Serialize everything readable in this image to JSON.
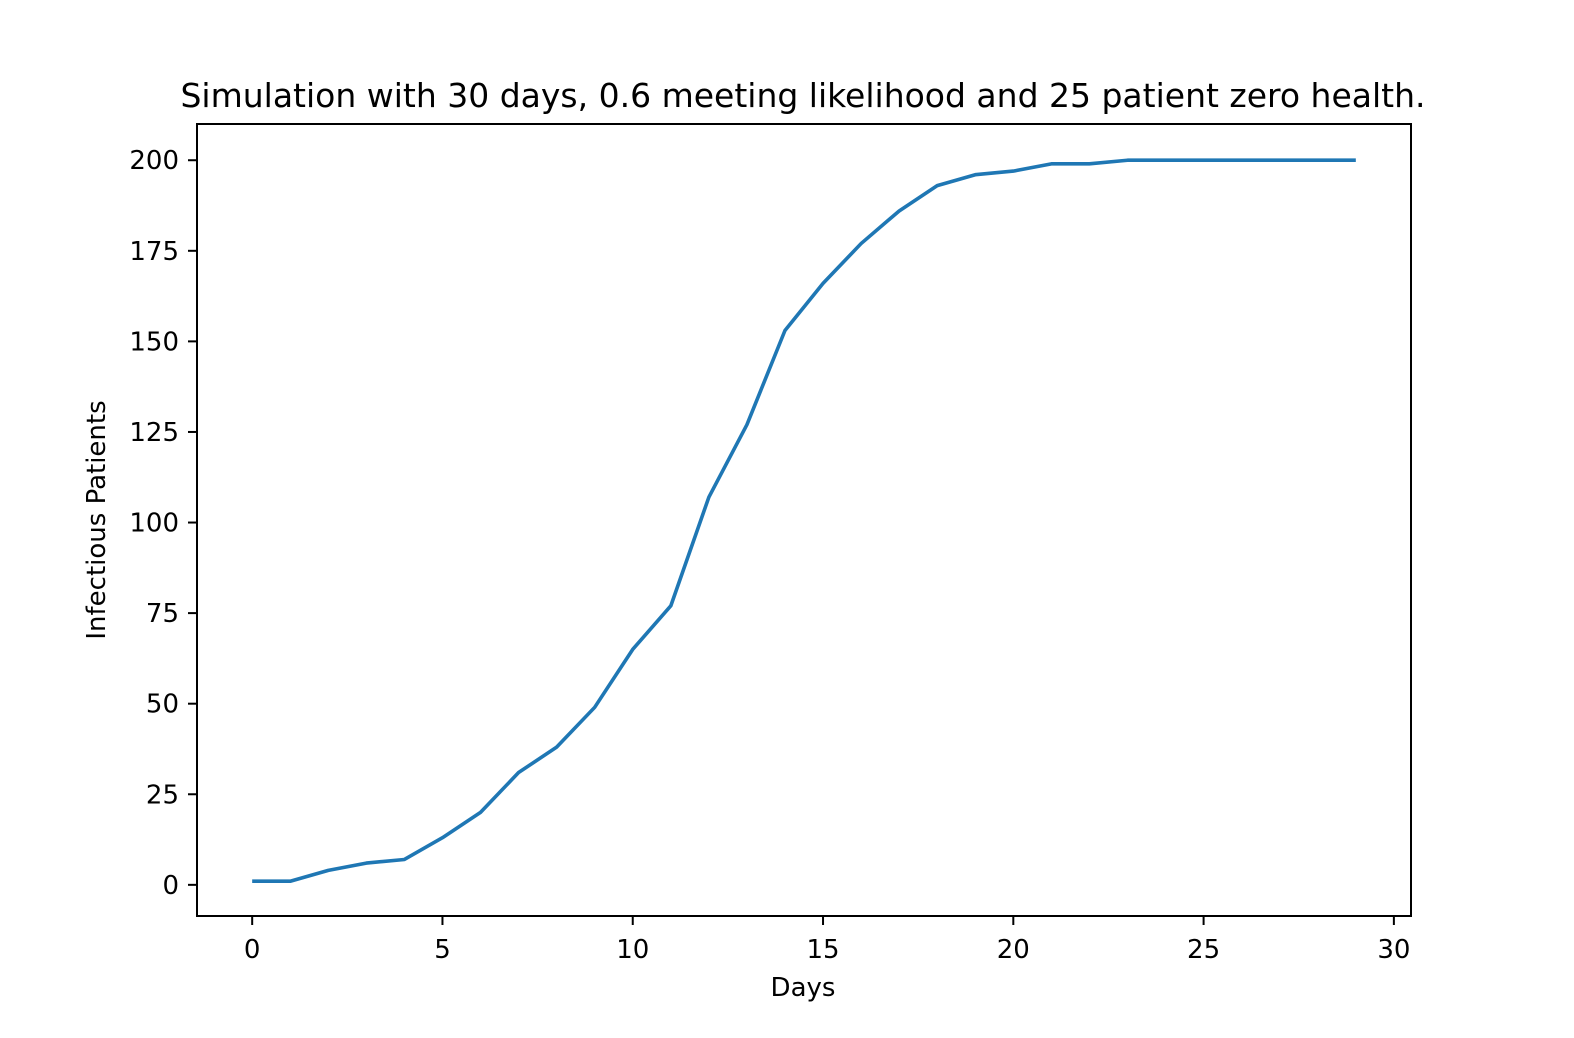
{
  "chart_data": {
    "type": "line",
    "title": "Simulation with 30 days, 0.6 meeting likelihood and 25 patient zero health.",
    "xlabel": "Days",
    "ylabel": "Infectious Patients",
    "xlim": [
      -1.45,
      30.45
    ],
    "ylim": [
      -8.6,
      210
    ],
    "xticks": [
      0,
      5,
      10,
      15,
      20,
      25,
      30
    ],
    "yticks": [
      0,
      25,
      50,
      75,
      100,
      125,
      150,
      175,
      200
    ],
    "xtick_labels": [
      "0",
      "5",
      "10",
      "15",
      "20",
      "25",
      "30"
    ],
    "ytick_labels": [
      "0",
      "25",
      "50",
      "75",
      "100",
      "125",
      "150",
      "175",
      "200"
    ],
    "grid": false,
    "series": [
      {
        "color": "#1f77b4",
        "x": [
          0,
          1,
          2,
          3,
          4,
          5,
          6,
          7,
          8,
          9,
          10,
          11,
          12,
          13,
          14,
          15,
          16,
          17,
          18,
          19,
          20,
          21,
          22,
          23,
          24,
          25,
          26,
          27,
          28,
          29
        ],
        "y": [
          1,
          1,
          4,
          6,
          7,
          13,
          20,
          31,
          38,
          49,
          65,
          77,
          107,
          127,
          153,
          166,
          177,
          186,
          193,
          196,
          197,
          199,
          199,
          200,
          200,
          200,
          200,
          200,
          200,
          200
        ]
      }
    ]
  }
}
